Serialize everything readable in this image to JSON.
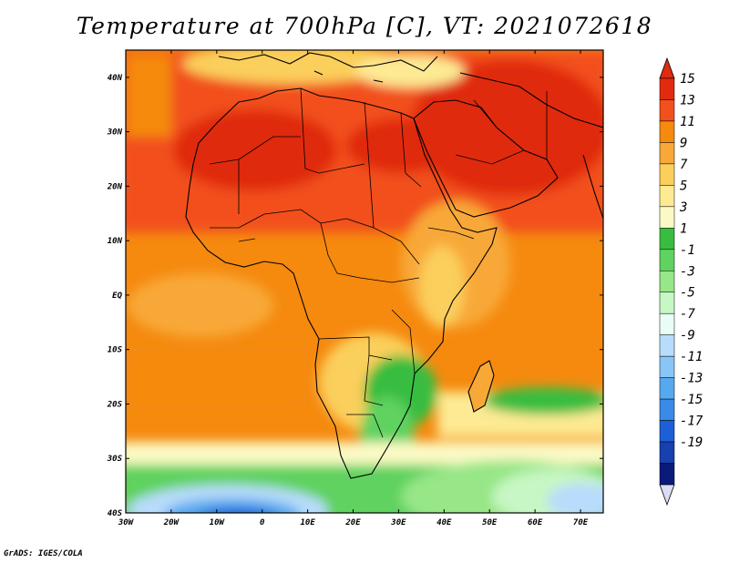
{
  "title": "Temperature at 700hPa [C], VT: 2021072618",
  "footer": "GrADS: IGES/COLA",
  "map": {
    "lon_range": [
      -30,
      75
    ],
    "lat_range": [
      -40,
      45
    ],
    "lon_ticks": [
      "30W",
      "20W",
      "10W",
      "0",
      "10E",
      "20E",
      "30E",
      "40E",
      "50E",
      "60E",
      "70E"
    ],
    "lat_ticks": [
      "40N",
      "30N",
      "20N",
      "10N",
      "EQ",
      "10S",
      "20S",
      "30S",
      "40S"
    ]
  },
  "colorbar": {
    "labels": [
      "15",
      "13",
      "11",
      "9",
      "7",
      "5",
      "3",
      "1",
      "-1",
      "-3",
      "-5",
      "-7",
      "-9",
      "-11",
      "-13",
      "-15",
      "-17",
      "-19"
    ],
    "colors": [
      "#e02b10",
      "#f2501c",
      "#f58a0f",
      "#f8a837",
      "#fbcf5c",
      "#fdea93",
      "#fbfac5",
      "#39bd41",
      "#5fd25f",
      "#97e687",
      "#c7f7c4",
      "#e9fdf6",
      "#b8dcfb",
      "#89c6f7",
      "#56a8ef",
      "#3a8ae8",
      "#1d5fd6",
      "#1740b0",
      "#0b1a7a"
    ],
    "under_color": "#dcdcf5"
  }
}
